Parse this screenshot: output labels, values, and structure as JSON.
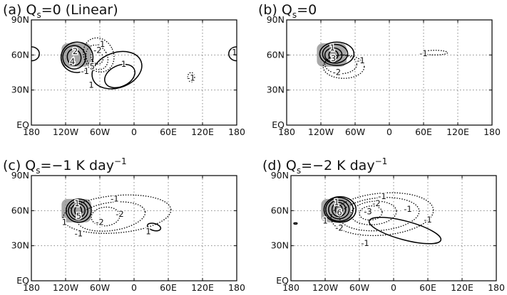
{
  "panels": [
    {
      "title": {
        "label": "(a) Q",
        "subscript": "s",
        "text": "=0 (Linear)"
      },
      "contour_labels": [
        "2",
        "-1",
        "-2",
        "1",
        "4",
        "-5",
        "-1",
        "1",
        "1",
        "-1"
      ]
    },
    {
      "title": {
        "label": "(b) Q",
        "subscript": "s",
        "text": "=0"
      },
      "contour_labels": [
        "1",
        "3",
        "-1",
        "-2",
        "-1"
      ]
    },
    {
      "title": {
        "label": "(c) Q",
        "subscript": "s",
        "text": "=−1 K day",
        "superscript": "−1"
      },
      "contour_labels": [
        "1",
        "5",
        "1",
        "-1",
        "-2",
        "-2",
        "-1",
        "1"
      ]
    },
    {
      "title": {
        "label": "(d) Q",
        "subscript": "s",
        "text": "=−2 K day",
        "superscript": "−1"
      },
      "contour_labels": [
        "1",
        "6",
        "1",
        "-1",
        "-2",
        "-3",
        "-1",
        "-2",
        "-1",
        "-1"
      ]
    }
  ],
  "x_labels": [
    "180",
    "120W",
    "60W",
    "0",
    "60E",
    "120E",
    "180"
  ],
  "y_labels": [
    "EQ",
    "30N",
    "60N",
    "90N"
  ]
}
